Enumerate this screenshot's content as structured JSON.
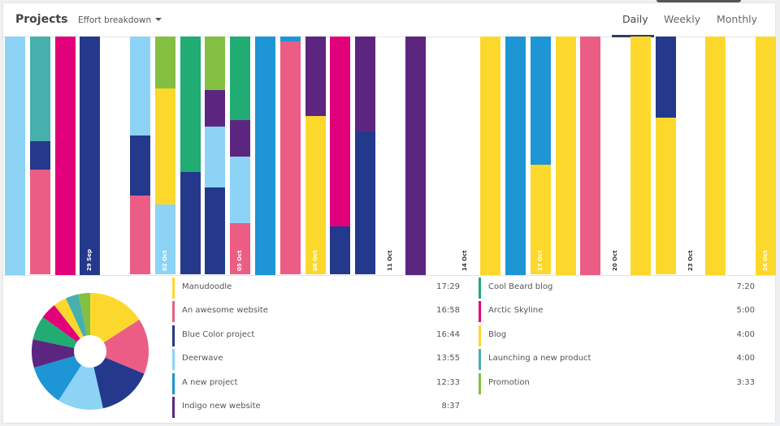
{
  "header": {
    "title": "Projects",
    "dropdown_label": "Effort breakdown",
    "tabs": [
      {
        "label": "Daily",
        "active": true
      },
      {
        "label": "Weekly",
        "active": false
      },
      {
        "label": "Monthly",
        "active": false
      }
    ]
  },
  "colors": {
    "Manudoodle": "#fdd82c",
    "An awesome website": "#ec5d86",
    "Blue Color project": "#24388c",
    "Deerwave": "#8cd3f5",
    "A new project": "#1e95d4",
    "Indigo new website": "#5c2680",
    "Cool Beard blog": "#20ac72",
    "Arctic Skyline": "#e2007a",
    "Blog": "#fdd82c",
    "Launching a new product": "#47b0ad",
    "Promotion": "#83bf40"
  },
  "legend": [
    {
      "name": "Manudoodle",
      "time": "17:29"
    },
    {
      "name": "An awesome website",
      "time": "16:58"
    },
    {
      "name": "Blue Color project",
      "time": "16:44"
    },
    {
      "name": "Deerwave",
      "time": "13:55"
    },
    {
      "name": "A new project",
      "time": "12:33"
    },
    {
      "name": "Indigo new website",
      "time": "8:37"
    },
    {
      "name": "Cool Beard blog",
      "time": "7:20"
    },
    {
      "name": "Arctic Skyline",
      "time": "5:00"
    },
    {
      "name": "Blog",
      "time": "4:00"
    },
    {
      "name": "Launching a new product",
      "time": "4:00"
    },
    {
      "name": "Promotion",
      "time": "3:33"
    }
  ],
  "chart_data": [
    {
      "type": "bar",
      "stacked": "percent",
      "x_tick_labels": [
        "29 Sep",
        "02 Oct",
        "05 Oct",
        "08 Oct",
        "11 Oct",
        "14 Oct",
        "17 Oct",
        "20 Oct",
        "23 Oct",
        "26 Oct"
      ],
      "days": [
        {
          "date": "26 Sep",
          "segments": [
            [
              "Deerwave",
              100
            ]
          ]
        },
        {
          "date": "27 Sep",
          "segments": [
            [
              "Launching a new product",
              44
            ],
            [
              "Blue Color project",
              12
            ],
            [
              "An awesome website",
              44
            ]
          ]
        },
        {
          "date": "28 Sep",
          "segments": [
            [
              "Arctic Skyline",
              100
            ]
          ]
        },
        {
          "date": "29 Sep",
          "label": "29 Sep",
          "segments": [
            [
              "Blue Color project",
              100
            ]
          ]
        },
        {
          "date": "30 Sep",
          "segments": []
        },
        {
          "date": "01 Oct",
          "segments": [
            [
              "Deerwave",
              41.5
            ],
            [
              "Blue Color project",
              25.5
            ],
            [
              "An awesome website",
              33
            ]
          ]
        },
        {
          "date": "02 Oct",
          "label": "02 Oct",
          "segments": [
            [
              "Promotion",
              22
            ],
            [
              "Manudoodle",
              48.5
            ],
            [
              "Deerwave",
              29.5
            ]
          ]
        },
        {
          "date": "03 Oct",
          "segments": [
            [
              "Cool Beard blog",
              57
            ],
            [
              "Blue Color project",
              43
            ]
          ]
        },
        {
          "date": "04 Oct",
          "segments": [
            [
              "Promotion",
              22.5
            ],
            [
              "Indigo new website",
              15.5
            ],
            [
              "Deerwave",
              25.5
            ],
            [
              "Blue Color project",
              36.5
            ]
          ]
        },
        {
          "date": "05 Oct",
          "label": "05 Oct",
          "segments": [
            [
              "Cool Beard blog",
              35
            ],
            [
              "Indigo new website",
              15.5
            ],
            [
              "Deerwave",
              28
            ],
            [
              "An awesome website",
              21.5
            ]
          ]
        },
        {
          "date": "06 Oct",
          "segments": [
            [
              "A new project",
              100
            ]
          ]
        },
        {
          "date": "07 Oct",
          "segments": [
            [
              "A new project",
              2
            ],
            [
              "An awesome website",
              98
            ]
          ]
        },
        {
          "date": "08 Oct",
          "label": "08 Oct",
          "segments": [
            [
              "Indigo new website",
              33.5
            ],
            [
              "Manudoodle",
              66.5
            ]
          ]
        },
        {
          "date": "09 Oct",
          "segments": [
            [
              "Arctic Skyline",
              80
            ],
            [
              "Blue Color project",
              20
            ]
          ]
        },
        {
          "date": "10 Oct",
          "segments": [
            [
              "Indigo new website",
              40
            ],
            [
              "Blue Color project",
              60
            ]
          ]
        },
        {
          "date": "11 Oct",
          "label": "11 Oct",
          "segments": []
        },
        {
          "date": "12 Oct",
          "segments": [
            [
              "Indigo new website",
              100
            ]
          ]
        },
        {
          "date": "13 Oct",
          "segments": []
        },
        {
          "date": "14 Oct",
          "label": "14 Oct",
          "segments": []
        },
        {
          "date": "15 Oct",
          "segments": [
            [
              "Blog",
              100
            ]
          ]
        },
        {
          "date": "16 Oct",
          "segments": [
            [
              "A new project",
              100
            ]
          ]
        },
        {
          "date": "17 Oct",
          "label": "17 Oct",
          "segments": [
            [
              "A new project",
              54
            ],
            [
              "Manudoodle",
              46
            ]
          ]
        },
        {
          "date": "18 Oct",
          "segments": [
            [
              "Manudoodle",
              100
            ]
          ]
        },
        {
          "date": "19 Oct",
          "segments": [
            [
              "An awesome website",
              100
            ]
          ]
        },
        {
          "date": "20 Oct",
          "label": "20 Oct",
          "segments": []
        },
        {
          "date": "21 Oct",
          "segments": [
            [
              "Manudoodle",
              100
            ]
          ]
        },
        {
          "date": "22 Oct",
          "segments": [
            [
              "Blue Color project",
              34
            ],
            [
              "Manudoodle",
              66
            ]
          ]
        },
        {
          "date": "23 Oct",
          "label": "23 Oct",
          "segments": []
        },
        {
          "date": "24 Oct",
          "segments": [
            [
              "Manudoodle",
              100
            ]
          ]
        },
        {
          "date": "25 Oct",
          "segments": []
        },
        {
          "date": "26 Oct",
          "label": "26 Oct",
          "segments": [
            [
              "Manudoodle",
              100
            ]
          ]
        }
      ]
    },
    {
      "type": "pie",
      "donut": true,
      "categories": [
        "Manudoodle",
        "An awesome website",
        "Blue Color project",
        "Deerwave",
        "A new project",
        "Indigo new website",
        "Cool Beard blog",
        "Arctic Skyline",
        "Blog",
        "Launching a new product",
        "Promotion"
      ],
      "values_hours": [
        17.48,
        16.97,
        16.73,
        13.92,
        12.55,
        8.62,
        7.33,
        5.0,
        4.0,
        4.0,
        3.55
      ]
    }
  ]
}
